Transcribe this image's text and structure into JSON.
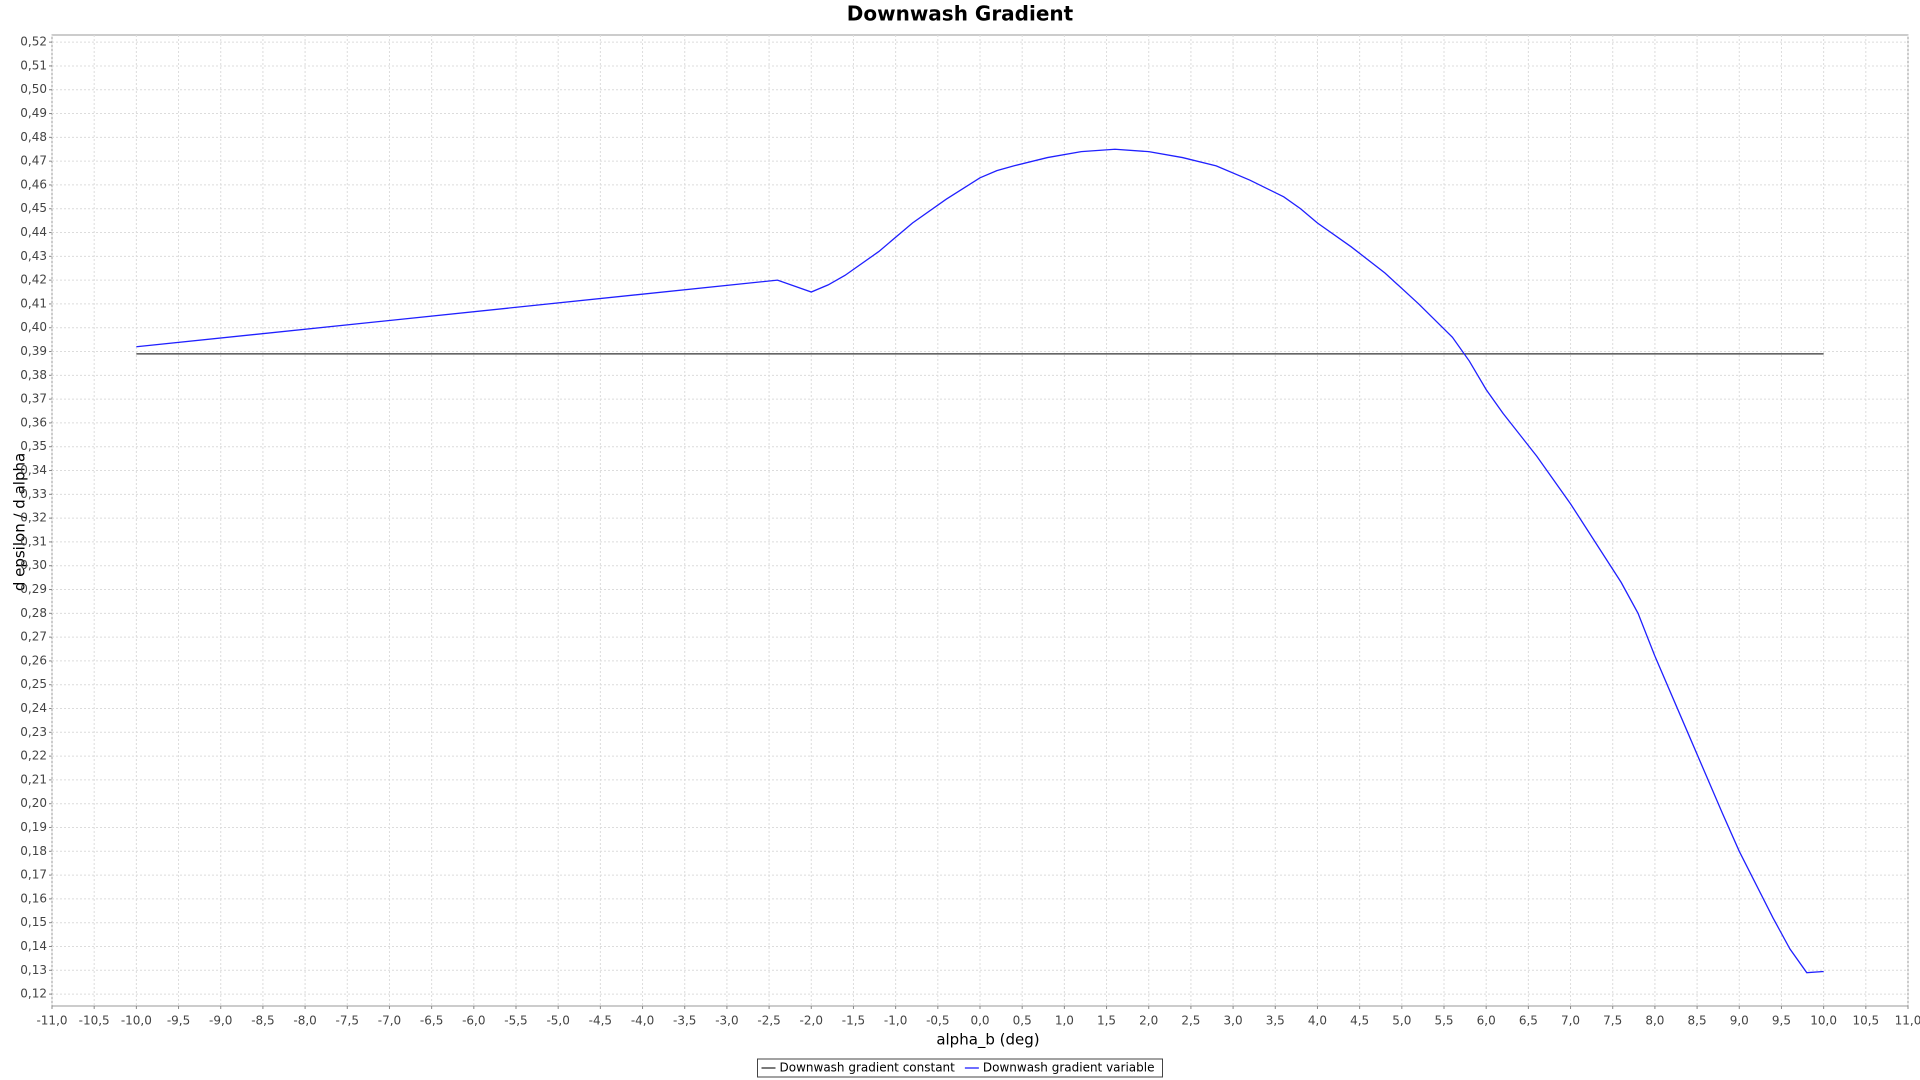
{
  "chart_data": {
    "type": "line",
    "title": "Downwash Gradient",
    "x_label": "alpha_b (deg)",
    "y_label": "d epsilon / d alpha",
    "x": [
      -10,
      -2.4,
      -2.0,
      -1.8,
      -1.6,
      -1.2,
      -0.8,
      -0.4,
      0,
      0.2,
      0.4,
      0.8,
      1.2,
      1.6,
      2.0,
      2.4,
      2.8,
      3.2,
      3.6,
      3.8,
      4.0,
      4.4,
      4.8,
      5.2,
      5.6,
      5.8,
      6.0,
      6.2,
      6.6,
      7.0,
      7.6,
      7.8,
      8.0,
      8.4,
      8.8,
      9.0,
      9.4,
      9.6,
      9.8,
      10.0
    ],
    "series": [
      {
        "name": "Downwash gradient constant",
        "color": "#333333",
        "values": [
          0.389,
          0.389,
          0.389,
          0.389,
          0.389,
          0.389,
          0.389,
          0.389,
          0.389,
          0.389,
          0.389,
          0.389,
          0.389,
          0.389,
          0.389,
          0.389,
          0.389,
          0.389,
          0.389,
          0.389,
          0.389,
          0.389,
          0.389,
          0.389,
          0.389,
          0.389,
          0.389,
          0.389,
          0.389,
          0.389,
          0.389,
          0.389,
          0.389,
          0.389,
          0.389,
          0.389,
          0.389,
          0.389,
          0.389,
          0.389
        ]
      },
      {
        "name": "Downwash gradient variable",
        "color": "#2020ff",
        "values": [
          0.392,
          0.42,
          0.415,
          0.418,
          0.422,
          0.432,
          0.444,
          0.454,
          0.463,
          0.466,
          0.468,
          0.4715,
          0.474,
          0.475,
          0.474,
          0.4715,
          0.468,
          0.462,
          0.455,
          0.45,
          0.444,
          0.434,
          0.423,
          0.41,
          0.396,
          0.386,
          0.374,
          0.364,
          0.346,
          0.326,
          0.293,
          0.28,
          0.262,
          0.229,
          0.196,
          0.18,
          0.152,
          0.139,
          0.129,
          0.1295
        ]
      }
    ],
    "xlim": [
      -11,
      11
    ],
    "ylim": [
      0.115,
      0.523
    ],
    "xticks": [
      {
        "value": -11,
        "label": "-11,0"
      },
      {
        "value": -10.5,
        "label": "-10,5"
      },
      {
        "value": -10,
        "label": "-10,0"
      },
      {
        "value": -9.5,
        "label": "-9,5"
      },
      {
        "value": -9,
        "label": "-9,0"
      },
      {
        "value": -8.5,
        "label": "-8,5"
      },
      {
        "value": -8,
        "label": "-8,0"
      },
      {
        "value": -7.5,
        "label": "-7,5"
      },
      {
        "value": -7,
        "label": "-7,0"
      },
      {
        "value": -6.5,
        "label": "-6,5"
      },
      {
        "value": -6,
        "label": "-6,0"
      },
      {
        "value": -5.5,
        "label": "-5,5"
      },
      {
        "value": -5,
        "label": "-5,0"
      },
      {
        "value": -4.5,
        "label": "-4,5"
      },
      {
        "value": -4,
        "label": "-4,0"
      },
      {
        "value": -3.5,
        "label": "-3,5"
      },
      {
        "value": -3,
        "label": "-3,0"
      },
      {
        "value": -2.5,
        "label": "-2,5"
      },
      {
        "value": -2,
        "label": "-2,0"
      },
      {
        "value": -1.5,
        "label": "-1,5"
      },
      {
        "value": -1,
        "label": "-1,0"
      },
      {
        "value": -0.5,
        "label": "-0,5"
      },
      {
        "value": 0,
        "label": "0,0"
      },
      {
        "value": 0.5,
        "label": "0,5"
      },
      {
        "value": 1,
        "label": "1,0"
      },
      {
        "value": 1.5,
        "label": "1,5"
      },
      {
        "value": 2,
        "label": "2,0"
      },
      {
        "value": 2.5,
        "label": "2,5"
      },
      {
        "value": 3,
        "label": "3,0"
      },
      {
        "value": 3.5,
        "label": "3,5"
      },
      {
        "value": 4,
        "label": "4,0"
      },
      {
        "value": 4.5,
        "label": "4,5"
      },
      {
        "value": 5,
        "label": "5,0"
      },
      {
        "value": 5.5,
        "label": "5,5"
      },
      {
        "value": 6,
        "label": "6,0"
      },
      {
        "value": 6.5,
        "label": "6,5"
      },
      {
        "value": 7,
        "label": "7,0"
      },
      {
        "value": 7.5,
        "label": "7,5"
      },
      {
        "value": 8,
        "label": "8,0"
      },
      {
        "value": 8.5,
        "label": "8,5"
      },
      {
        "value": 9,
        "label": "9,0"
      },
      {
        "value": 9.5,
        "label": "9,5"
      },
      {
        "value": 10,
        "label": "10,0"
      },
      {
        "value": 10.5,
        "label": "10,5"
      },
      {
        "value": 11,
        "label": "11,0"
      }
    ],
    "yticks": [
      {
        "value": 0.12,
        "label": "0,12"
      },
      {
        "value": 0.13,
        "label": "0,13"
      },
      {
        "value": 0.14,
        "label": "0,14"
      },
      {
        "value": 0.15,
        "label": "0,15"
      },
      {
        "value": 0.16,
        "label": "0,16"
      },
      {
        "value": 0.17,
        "label": "0,17"
      },
      {
        "value": 0.18,
        "label": "0,18"
      },
      {
        "value": 0.19,
        "label": "0,19"
      },
      {
        "value": 0.2,
        "label": "0,20"
      },
      {
        "value": 0.21,
        "label": "0,21"
      },
      {
        "value": 0.22,
        "label": "0,22"
      },
      {
        "value": 0.23,
        "label": "0,23"
      },
      {
        "value": 0.24,
        "label": "0,24"
      },
      {
        "value": 0.25,
        "label": "0,25"
      },
      {
        "value": 0.26,
        "label": "0,26"
      },
      {
        "value": 0.27,
        "label": "0,27"
      },
      {
        "value": 0.28,
        "label": "0,28"
      },
      {
        "value": 0.29,
        "label": "0,29"
      },
      {
        "value": 0.3,
        "label": "0,30"
      },
      {
        "value": 0.31,
        "label": "0,31"
      },
      {
        "value": 0.32,
        "label": "0,32"
      },
      {
        "value": 0.33,
        "label": "0,33"
      },
      {
        "value": 0.34,
        "label": "0,34"
      },
      {
        "value": 0.35,
        "label": "0,35"
      },
      {
        "value": 0.36,
        "label": "0,36"
      },
      {
        "value": 0.37,
        "label": "0,37"
      },
      {
        "value": 0.38,
        "label": "0,38"
      },
      {
        "value": 0.39,
        "label": "0,39"
      },
      {
        "value": 0.4,
        "label": "0,40"
      },
      {
        "value": 0.41,
        "label": "0,41"
      },
      {
        "value": 0.42,
        "label": "0,42"
      },
      {
        "value": 0.43,
        "label": "0,43"
      },
      {
        "value": 0.44,
        "label": "0,44"
      },
      {
        "value": 0.45,
        "label": "0,45"
      },
      {
        "value": 0.46,
        "label": "0,46"
      },
      {
        "value": 0.47,
        "label": "0,47"
      },
      {
        "value": 0.48,
        "label": "0,48"
      },
      {
        "value": 0.49,
        "label": "0,49"
      },
      {
        "value": 0.5,
        "label": "0,50"
      },
      {
        "value": 0.51,
        "label": "0,51"
      },
      {
        "value": 0.52,
        "label": "0,52"
      }
    ],
    "grid": true,
    "legend": "bottom"
  }
}
